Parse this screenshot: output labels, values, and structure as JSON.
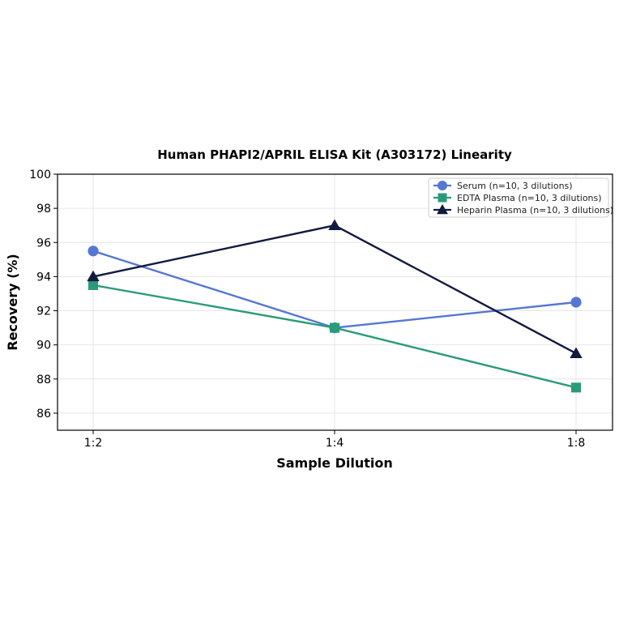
{
  "chart_data": {
    "type": "line",
    "title": "Human PHAPI2/APRIL ELISA Kit (A303172) Linearity",
    "xlabel": "Sample Dilution",
    "ylabel": "Recovery (%)",
    "categories": [
      "1:2",
      "1:4",
      "1:8"
    ],
    "ylim": [
      85,
      100
    ],
    "yticks": [
      "86",
      "88",
      "90",
      "92",
      "94",
      "96",
      "98",
      "100"
    ],
    "grid": true,
    "legend_position": "top-right",
    "series": [
      {
        "name": "Serum (n=10, 3 dilutions)",
        "values": [
          95.5,
          91.0,
          92.5
        ],
        "color": "#5577d4",
        "marker": "circle"
      },
      {
        "name": "EDTA Plasma (n=10, 3 dilutions)",
        "values": [
          93.5,
          91.0,
          87.5
        ],
        "color": "#2a9b78",
        "marker": "square"
      },
      {
        "name": "Heparin Plasma (n=10, 3 dilutions)",
        "values": [
          94.0,
          97.0,
          89.5
        ],
        "color": "#111a3f",
        "marker": "triangle"
      }
    ]
  }
}
